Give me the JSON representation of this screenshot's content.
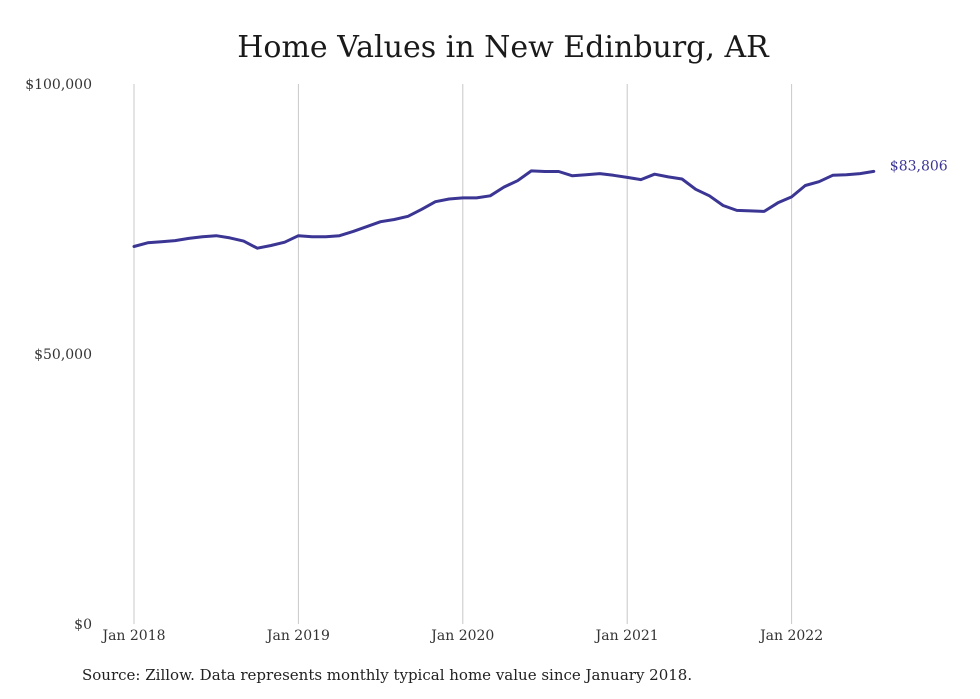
{
  "chart_data": {
    "type": "line",
    "title": "Home Values in New Edinburg, AR",
    "source_note": "Source: Zillow. Data represents monthly typical home value since January 2018.",
    "ylim": [
      0,
      100000
    ],
    "y_ticks": [
      {
        "value": 0,
        "label": "$0"
      },
      {
        "value": 50000,
        "label": "$50,000"
      },
      {
        "value": 100000,
        "label": "$100,000"
      }
    ],
    "x_ticks": [
      {
        "value": 0,
        "label": "Jan 2018"
      },
      {
        "value": 12,
        "label": "Jan 2019"
      },
      {
        "value": 24,
        "label": "Jan 2020"
      },
      {
        "value": 36,
        "label": "Jan 2021"
      },
      {
        "value": 48,
        "label": "Jan 2022"
      }
    ],
    "grid": "vertical",
    "line_color": "#3b3594",
    "end_label": "$83,806",
    "series": [
      {
        "values": [
          69900,
          70600,
          70800,
          71000,
          71400,
          71700,
          71900,
          71500,
          70900,
          69600,
          70100,
          70700,
          71900,
          71700,
          71700,
          71900,
          72700,
          73600,
          74500,
          74900,
          75500,
          76800,
          78200,
          78700,
          78900,
          78900,
          79300,
          80900,
          82100,
          83900,
          83800,
          83800,
          83000,
          83200,
          83400,
          83100,
          82700,
          82300,
          83300,
          82800,
          82400,
          80500,
          79300,
          77500,
          76600,
          76500,
          76400,
          78000,
          79100,
          81200,
          81900,
          83100,
          83200,
          83400,
          83806
        ]
      }
    ]
  }
}
